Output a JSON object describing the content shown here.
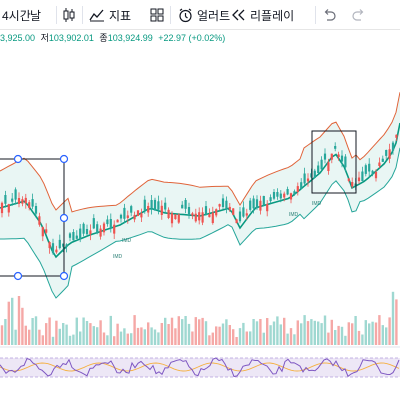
{
  "toolbar": {
    "interval_label": "4시간",
    "timeframe_label": "날",
    "indicators_label": "지표",
    "alert_label": "얼러트",
    "replay_label": "리플레이"
  },
  "ohlc": {
    "open_tail": "3,925.00",
    "low_label": "저",
    "low_value": "103,902.01",
    "close_label": "종",
    "close_value": "103,924.99",
    "change": "+22.97 (+0.02%)"
  },
  "chart_labels": {
    "label_a": "IMD",
    "label_b": "IMD",
    "label_c": "IMD",
    "label_d": "IMD"
  },
  "colors": {
    "up": "#26a69a",
    "down": "#ef5350",
    "volume_up": "#9fd8d1",
    "volume_down": "#f5a8a6",
    "upper_band": "#e0643a",
    "lower_band": "#26a69a",
    "basis": "#089981",
    "band_fill": "#e3f4f1",
    "rsi_line": "#7e57c2",
    "rsi_fill": "#ede7f6",
    "rsi_signal": "#f5b041"
  },
  "icons": [
    "candles-icon",
    "indicators-icon",
    "templates-icon",
    "alert-icon",
    "replay-icon",
    "undo-icon",
    "redo-icon"
  ]
}
